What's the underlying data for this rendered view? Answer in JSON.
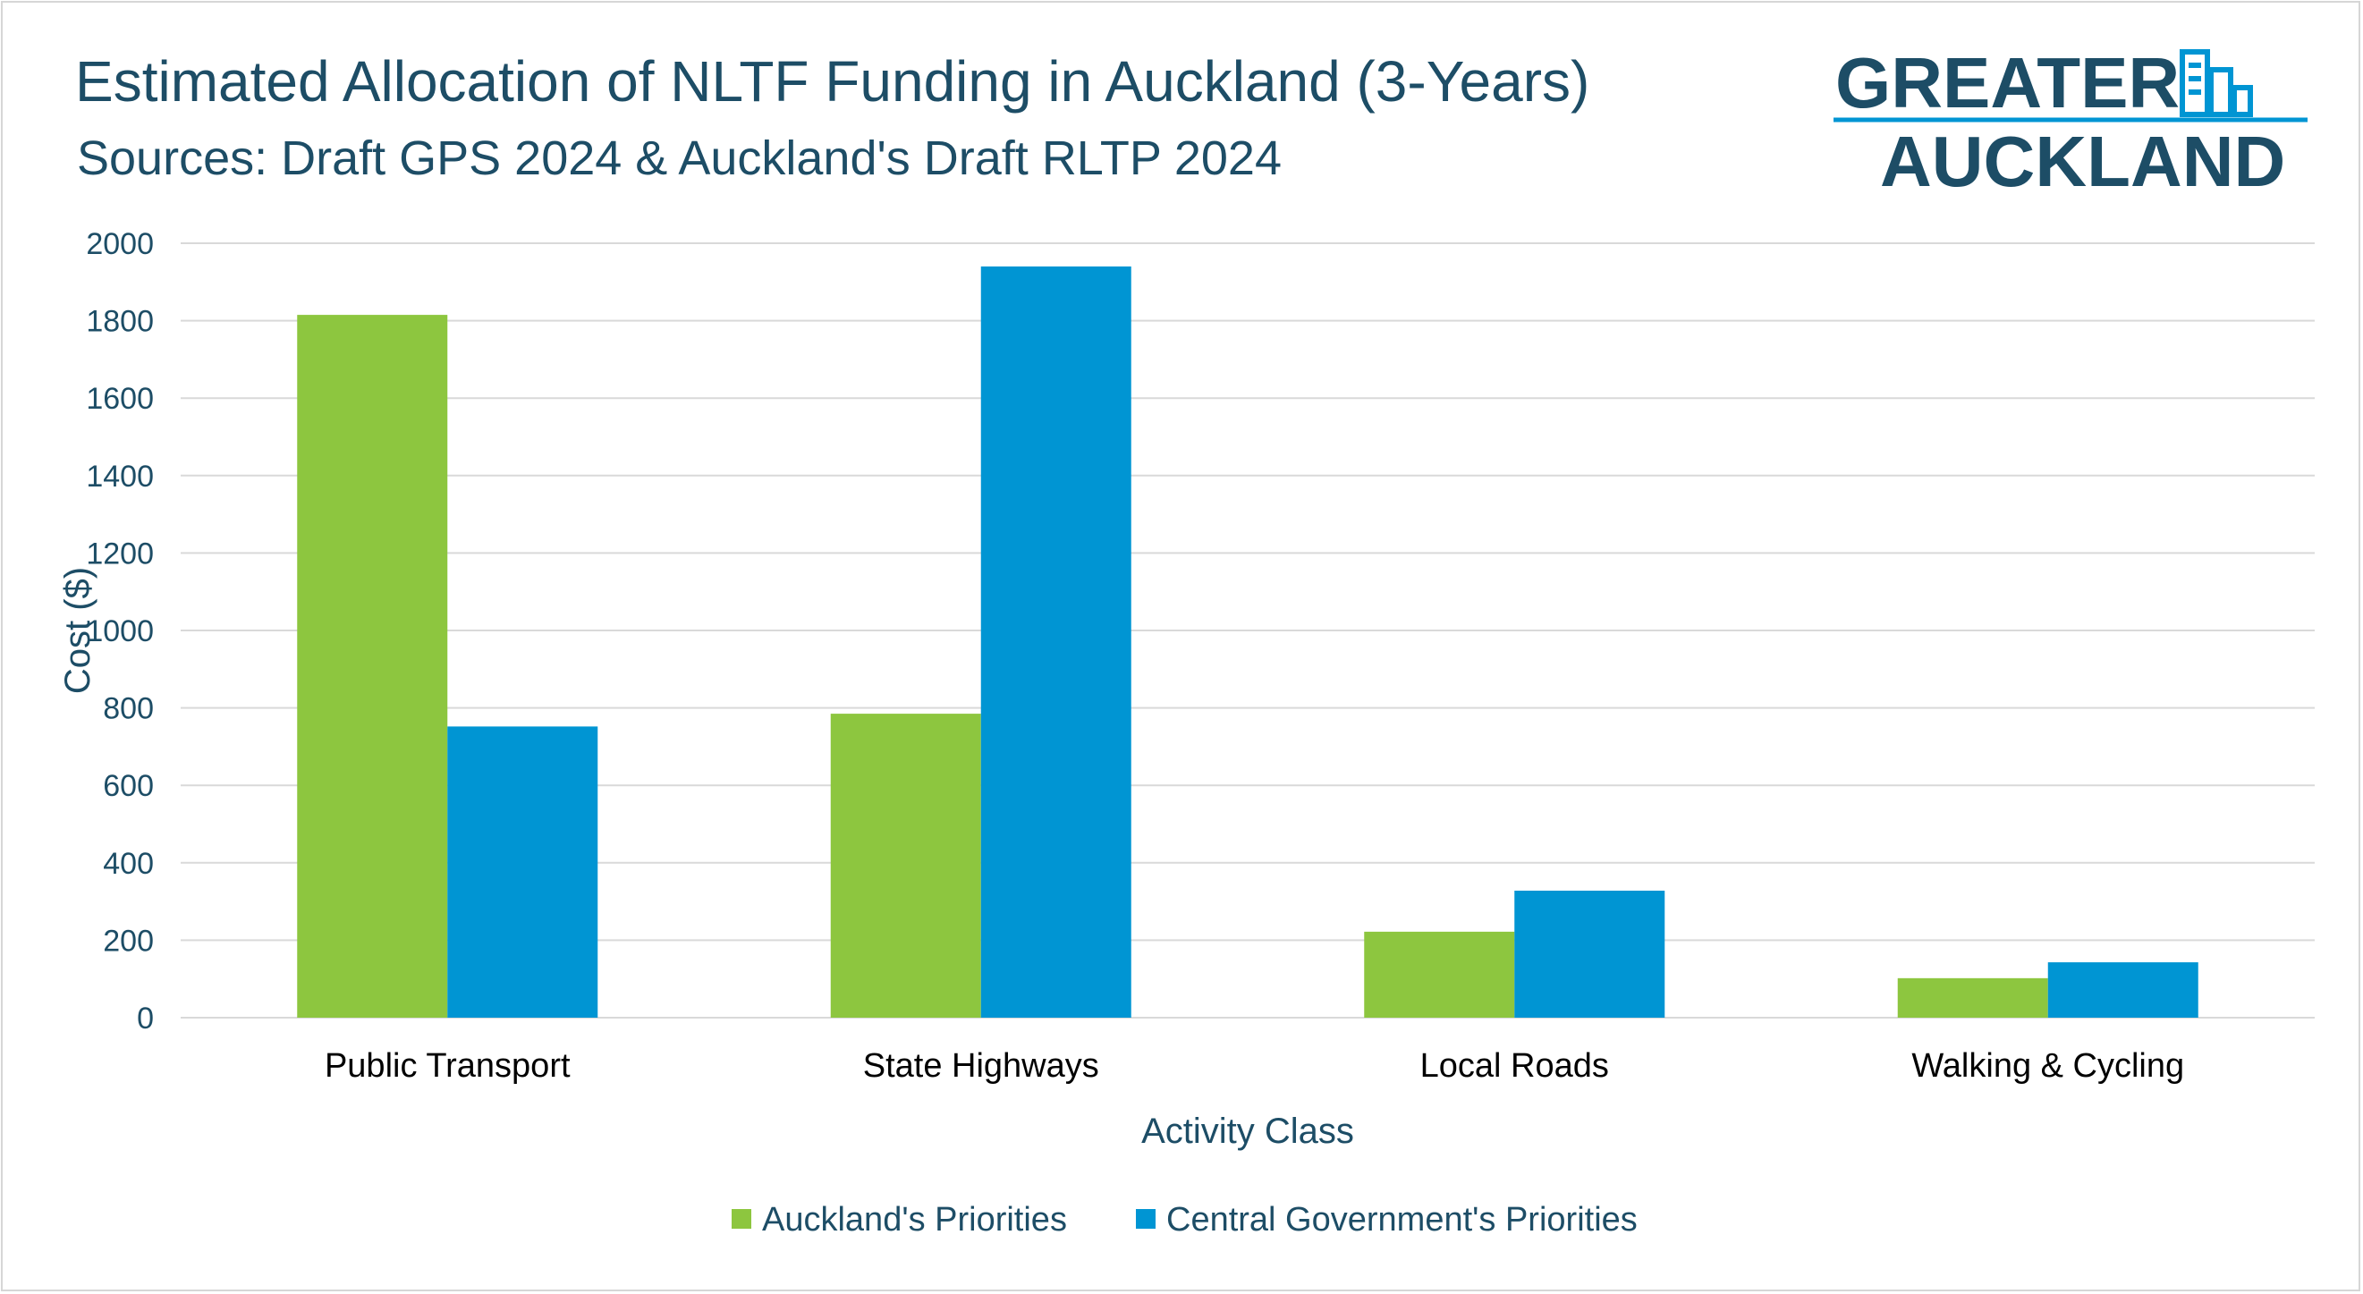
{
  "chart_data": {
    "type": "bar",
    "title": "Estimated Allocation of NLTF Funding in Auckland (3-Years)",
    "subtitle": "Sources: Draft GPS 2024 & Auckland's Draft RLTP 2024",
    "xlabel": "Activity Class",
    "ylabel": "Cost ($)",
    "categories": [
      "Public Transport",
      "State Highways",
      "Local Roads",
      "Walking & Cycling"
    ],
    "series": [
      {
        "name": "Auckland's Priorities",
        "color": "#8dc63f",
        "values": [
          1815,
          785,
          222,
          102
        ]
      },
      {
        "name": "Central Government's Priorities",
        "color": "#0095d3",
        "values": [
          752,
          1940,
          328,
          143
        ]
      }
    ],
    "ylim": [
      0,
      2000
    ],
    "yticks": [
      0,
      200,
      400,
      600,
      800,
      1000,
      1200,
      1400,
      1600,
      1800,
      2000
    ],
    "grid": true,
    "legend": "bottom-center"
  },
  "logo": {
    "line1": "GREATER",
    "line2": "AUCKLAND",
    "color": "#1d4d66",
    "accent": "#0095d3"
  }
}
